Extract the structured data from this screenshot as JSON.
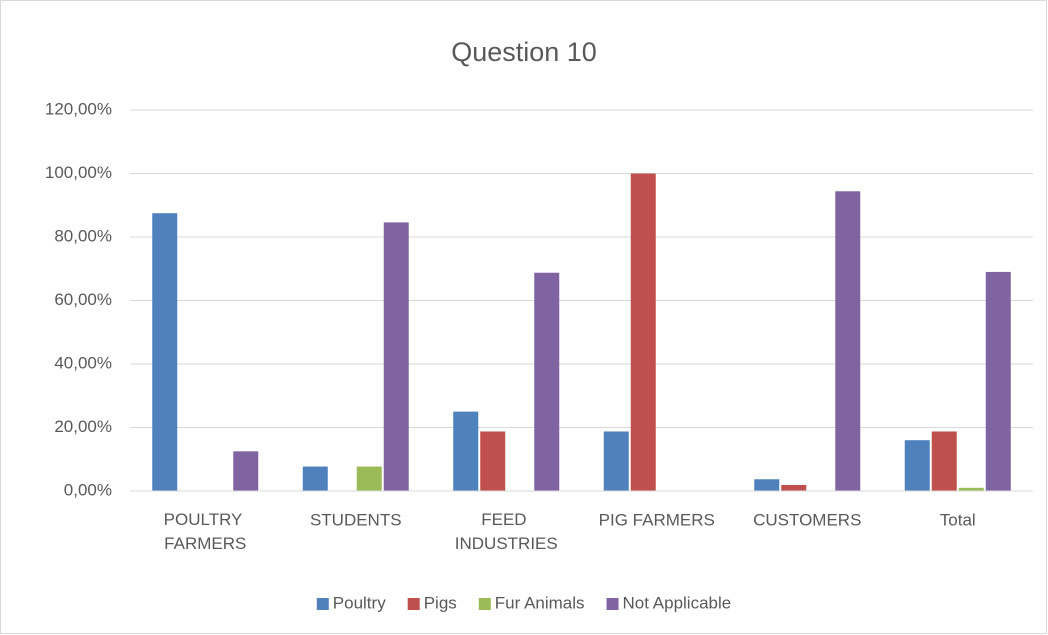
{
  "chart_data": {
    "type": "bar",
    "title": "Question 10",
    "categories": [
      "POULTRY FARMERS",
      "STUDENTS",
      "FEED INDUSTRIES",
      "PIG FARMERS",
      "CUSTOMERS",
      "Total"
    ],
    "series": [
      {
        "name": "Poultry",
        "color": "#4f81bd",
        "values": [
          87.5,
          7.7,
          25,
          18.75,
          3.7,
          16
        ]
      },
      {
        "name": "Pigs",
        "color": "#c0504d",
        "values": [
          0,
          0,
          18.75,
          100,
          1.9,
          18.75
        ]
      },
      {
        "name": "Fur Animals",
        "color": "#9bbb59",
        "values": [
          0,
          7.7,
          0,
          0,
          0,
          1
        ]
      },
      {
        "name": "Not Applicable",
        "color": "#8064a2",
        "values": [
          12.5,
          84.6,
          68.75,
          0,
          94.4,
          69
        ]
      }
    ],
    "ylim": [
      0,
      120
    ],
    "yticks": [
      {
        "value": 0,
        "label": "0,00%"
      },
      {
        "value": 20,
        "label": "20,00%"
      },
      {
        "value": 40,
        "label": "40,00%"
      },
      {
        "value": 60,
        "label": "60,00%"
      },
      {
        "value": 80,
        "label": "80,00%"
      },
      {
        "value": 100,
        "label": "100,00%"
      },
      {
        "value": 120,
        "label": "120,00%"
      }
    ],
    "grid": true,
    "legend": "bottom"
  }
}
